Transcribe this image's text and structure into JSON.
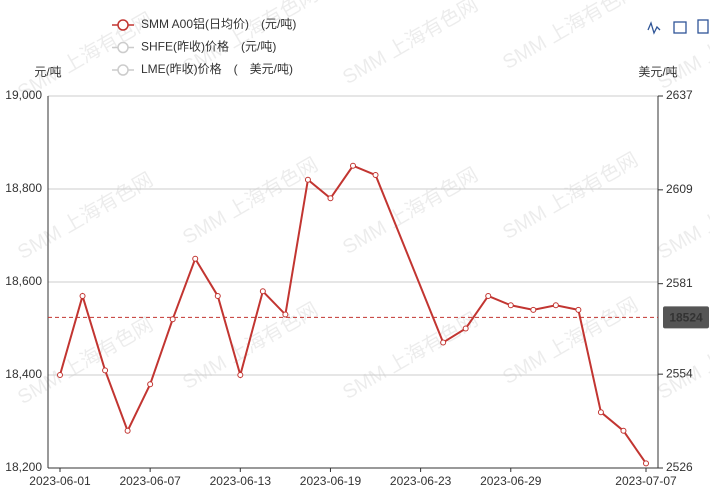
{
  "chart_data": {
    "type": "line",
    "watermark": "SMM 上海有色网",
    "legend": [
      {
        "name": "SMM A00铝(日均价)　(元/吨)",
        "color": "#c23531",
        "selected": true
      },
      {
        "name": "SHFE(昨收)价格　(元/吨)",
        "color": "#cccccc",
        "selected": false
      },
      {
        "name": "LME(昨收)价格　(　美元/吨)",
        "color": "#cccccc",
        "selected": false
      }
    ],
    "y_label": "元/吨",
    "y2_label": "美元/吨",
    "categories": [
      "2023-06-01",
      null,
      null,
      null,
      "2023-06-07",
      null,
      null,
      null,
      "2023-06-13",
      null,
      null,
      null,
      "2023-06-19",
      null,
      null,
      null,
      "2023-06-23",
      null,
      null,
      null,
      "2023-06-29",
      null,
      null,
      null,
      null,
      null,
      "2023-07-07"
    ],
    "series": [
      {
        "name": "SMM A00铝(日均价)　(元/吨)",
        "color": "#c23531",
        "values": [
          18400,
          18570,
          18410,
          18280,
          18380,
          18520,
          18650,
          18570,
          18400,
          18580,
          18530,
          18820,
          18780,
          18850,
          18830,
          null,
          null,
          18470,
          18500,
          18570,
          18550,
          18540,
          18550,
          18540,
          18320,
          18280,
          18210
        ]
      }
    ],
    "connect_nulls": true,
    "ylim": [
      18200,
      19000
    ],
    "yticks": [
      {
        "value": 18200,
        "label": "18,200"
      },
      {
        "value": 18400,
        "label": "18,400"
      },
      {
        "value": 18600,
        "label": "18,600"
      },
      {
        "value": 18800,
        "label": "18,800"
      },
      {
        "value": 19000,
        "label": "19,000"
      }
    ],
    "y2lim": [
      2526,
      2637
    ],
    "y2ticks": [
      2526,
      2554,
      2581,
      2609,
      2637
    ],
    "markline": {
      "value": 18524,
      "color": "#c23531"
    },
    "grid": true
  }
}
